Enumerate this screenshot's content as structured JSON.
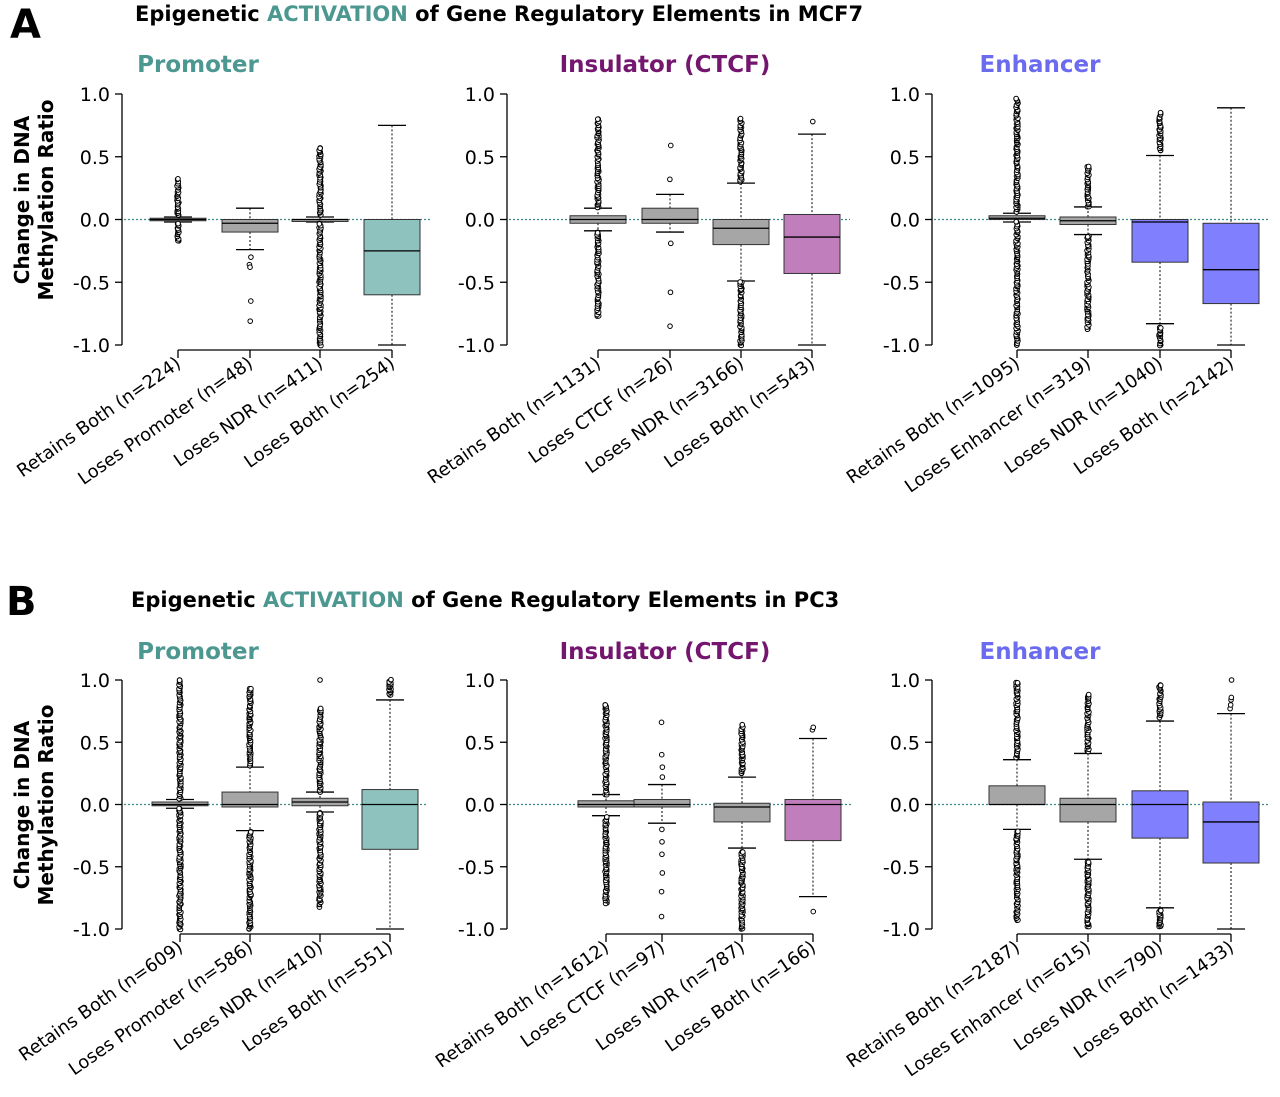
{
  "colors": {
    "activation": "#4d9791",
    "promoter": "#4d9791",
    "insulator": "#74166f",
    "enhancer": "#6b6bf0",
    "box_grey": "#a6a6a6",
    "promoter_fill": "#8dc2bf",
    "insulator_fill": "#c07fbc",
    "enhancer_fill": "#8080ff",
    "zero_line": "#3a8a86"
  },
  "panels": [
    {
      "label": "A",
      "title": {
        "pre": "Epigenetic ",
        "highlight": "ACTIVATION",
        "post": " of Gene Regulatory Elements in MCF7"
      }
    },
    {
      "label": "B",
      "title": {
        "pre": "Epigenetic ",
        "highlight": "ACTIVATION",
        "post": " of Gene Regulatory Elements in PC3"
      }
    }
  ],
  "ylabel_line1": "Change in DNA",
  "ylabel_line2": "Methylation Ratio",
  "chart_data": [
    {
      "type": "box",
      "panel": "A",
      "title": "Promoter",
      "color_key": "promoter",
      "ylim": [
        -1.0,
        1.0
      ],
      "yticks": [
        "1.0",
        "0.5",
        "0.0",
        "-0.5",
        "-1.0"
      ],
      "ylabel": "Change in DNA Methylation Ratio",
      "categories": [
        "Retains Both (n=224)",
        "Loses Promoter (n=48)",
        "Loses NDR (n=411)",
        "Loses Both (n=254)"
      ],
      "boxes": [
        {
          "q1": -0.01,
          "median": 0.0,
          "q3": 0.01,
          "whisker_low": -0.02,
          "whisker_high": 0.02,
          "fill": "box_grey",
          "outliers_range": [
            [
              -0.17,
              0.32
            ]
          ]
        },
        {
          "q1": -0.1,
          "median": -0.03,
          "q3": 0.0,
          "whisker_low": -0.24,
          "whisker_high": 0.09,
          "fill": "box_grey",
          "outliers": [
            -0.3,
            -0.36,
            -0.38,
            -0.65,
            -0.81
          ]
        },
        {
          "q1": -0.01,
          "median": 0.0,
          "q3": 0.0,
          "whisker_low": -0.02,
          "whisker_high": 0.02,
          "fill": "box_grey",
          "outliers_range": [
            [
              -1.0,
              0.57
            ]
          ]
        },
        {
          "q1": -0.6,
          "median": -0.25,
          "q3": 0.0,
          "whisker_low": -1.0,
          "whisker_high": 0.75,
          "fill": "promoter_fill"
        }
      ]
    },
    {
      "type": "box",
      "panel": "A",
      "title": "Insulator (CTCF)",
      "color_key": "insulator",
      "ylim": [
        -1.0,
        1.0
      ],
      "yticks": [
        "1.0",
        "0.5",
        "0.0",
        "-0.5",
        "-1.0"
      ],
      "categories": [
        "Retains Both (n=1131)",
        "Loses CTCF (n=26)",
        "Loses NDR (n=3166)",
        "Loses Both (n=543)"
      ],
      "boxes": [
        {
          "q1": -0.03,
          "median": 0.0,
          "q3": 0.03,
          "whisker_low": -0.09,
          "whisker_high": 0.09,
          "fill": "box_grey",
          "outliers_range": [
            [
              -0.77,
              0.8
            ]
          ]
        },
        {
          "q1": -0.03,
          "median": 0.0,
          "q3": 0.09,
          "whisker_low": -0.1,
          "whisker_high": 0.2,
          "fill": "box_grey",
          "outliers": [
            0.32,
            0.59,
            -0.19,
            -0.58,
            -0.85
          ]
        },
        {
          "q1": -0.2,
          "median": -0.07,
          "q3": 0.0,
          "whisker_low": -0.49,
          "whisker_high": 0.29,
          "fill": "box_grey",
          "outliers_range": [
            [
              -1.0,
              0.8
            ]
          ]
        },
        {
          "q1": -0.43,
          "median": -0.14,
          "q3": 0.04,
          "whisker_low": -1.0,
          "whisker_high": 0.68,
          "fill": "insulator_fill",
          "outliers": [
            0.78
          ]
        }
      ]
    },
    {
      "type": "box",
      "panel": "A",
      "title": "Enhancer",
      "color_key": "enhancer",
      "ylim": [
        -1.0,
        1.0
      ],
      "yticks": [
        "1.0",
        "0.5",
        "0.0",
        "-0.5",
        "-1.0"
      ],
      "categories": [
        "Retains Both (n=1095)",
        "Loses Enhancer (n=319)",
        "Loses NDR (n=1040)",
        "Loses Both (n=2142)"
      ],
      "boxes": [
        {
          "q1": 0.0,
          "median": 0.01,
          "q3": 0.03,
          "whisker_low": -0.02,
          "whisker_high": 0.05,
          "fill": "box_grey",
          "outliers_range": [
            [
              -1.0,
              0.96
            ]
          ]
        },
        {
          "q1": -0.04,
          "median": -0.01,
          "q3": 0.02,
          "whisker_low": -0.12,
          "whisker_high": 0.1,
          "fill": "box_grey",
          "outliers_range": [
            [
              -0.87,
              0.42
            ]
          ]
        },
        {
          "q1": -0.34,
          "median": -0.02,
          "q3": 0.0,
          "whisker_low": -0.83,
          "whisker_high": 0.51,
          "fill": "enhancer_fill",
          "outliers_range": [
            [
              -1.0,
              -0.86
            ],
            [
              0.55,
              0.85
            ]
          ]
        },
        {
          "q1": -0.67,
          "median": -0.4,
          "q3": -0.03,
          "whisker_low": -1.0,
          "whisker_high": 0.89,
          "fill": "enhancer_fill"
        }
      ]
    },
    {
      "type": "box",
      "panel": "B",
      "title": "Promoter",
      "color_key": "promoter",
      "ylim": [
        -1.0,
        1.0
      ],
      "yticks": [
        "1.0",
        "0.5",
        "0.0",
        "-0.5",
        "-1.0"
      ],
      "ylabel": "Change in DNA Methylation Ratio",
      "categories": [
        "Retains Both (n=609)",
        "Loses Promoter (n=586)",
        "Loses NDR (n=410)",
        "Loses Both (n=551)"
      ],
      "boxes": [
        {
          "q1": -0.01,
          "median": 0.0,
          "q3": 0.02,
          "whisker_low": -0.03,
          "whisker_high": 0.04,
          "fill": "box_grey",
          "outliers_range": [
            [
              -1.0,
              1.0
            ]
          ]
        },
        {
          "q1": -0.02,
          "median": 0.0,
          "q3": 0.1,
          "whisker_low": -0.21,
          "whisker_high": 0.3,
          "fill": "box_grey",
          "outliers_range": [
            [
              -1.0,
              0.93
            ]
          ]
        },
        {
          "q1": -0.01,
          "median": 0.02,
          "q3": 0.05,
          "whisker_low": -0.06,
          "whisker_high": 0.1,
          "fill": "box_grey",
          "outliers_range": [
            [
              -0.82,
              0.77
            ]
          ],
          "outliers": [
            1.0
          ]
        },
        {
          "q1": -0.36,
          "median": 0.0,
          "q3": 0.12,
          "whisker_low": -1.0,
          "whisker_high": 0.84,
          "fill": "promoter_fill",
          "outliers_range": [
            [
              0.88,
              1.0
            ]
          ]
        }
      ]
    },
    {
      "type": "box",
      "panel": "B",
      "title": "Insulator (CTCF)",
      "color_key": "insulator",
      "ylim": [
        -1.0,
        1.0
      ],
      "yticks": [
        "1.0",
        "0.5",
        "0.0",
        "-0.5",
        "-1.0"
      ],
      "categories": [
        "Retains Both (n=1612)",
        "Loses CTCF (n=97)",
        "Loses NDR (n=787)",
        "Loses Both (n=166)"
      ],
      "boxes": [
        {
          "q1": -0.02,
          "median": 0.0,
          "q3": 0.03,
          "whisker_low": -0.09,
          "whisker_high": 0.08,
          "fill": "box_grey",
          "outliers_range": [
            [
              -0.79,
              0.8
            ]
          ]
        },
        {
          "q1": -0.02,
          "median": 0.0,
          "q3": 0.04,
          "whisker_low": -0.15,
          "whisker_high": 0.16,
          "fill": "box_grey",
          "outliers": [
            0.22,
            0.3,
            0.4,
            0.66,
            -0.2,
            -0.3,
            -0.4,
            -0.55,
            -0.7,
            -0.9
          ]
        },
        {
          "q1": -0.14,
          "median": -0.02,
          "q3": 0.01,
          "whisker_low": -0.35,
          "whisker_high": 0.22,
          "fill": "box_grey",
          "outliers_range": [
            [
              -1.0,
              -0.38
            ],
            [
              0.25,
              0.64
            ]
          ]
        },
        {
          "q1": -0.29,
          "median": 0.0,
          "q3": 0.04,
          "whisker_low": -0.74,
          "whisker_high": 0.53,
          "fill": "insulator_fill",
          "outliers": [
            0.6,
            0.62,
            -0.86
          ]
        }
      ]
    },
    {
      "type": "box",
      "panel": "B",
      "title": "Enhancer",
      "color_key": "enhancer",
      "ylim": [
        -1.0,
        1.0
      ],
      "yticks": [
        "1.0",
        "0.5",
        "0.0",
        "-0.5",
        "-1.0"
      ],
      "categories": [
        "Retains Both (n=2187)",
        "Loses Enhancer (n=615)",
        "Loses NDR (n=790)",
        "Loses Both (n=1433)"
      ],
      "boxes": [
        {
          "q1": 0.0,
          "median": 0.0,
          "q3": 0.15,
          "whisker_low": -0.2,
          "whisker_high": 0.36,
          "fill": "box_grey",
          "outliers_range": [
            [
              -0.93,
              -0.22
            ],
            [
              0.38,
              0.98
            ]
          ]
        },
        {
          "q1": -0.14,
          "median": 0.0,
          "q3": 0.05,
          "whisker_low": -0.44,
          "whisker_high": 0.41,
          "fill": "box_grey",
          "outliers_range": [
            [
              -0.98,
              -0.46
            ],
            [
              0.43,
              0.88
            ]
          ]
        },
        {
          "q1": -0.27,
          "median": 0.0,
          "q3": 0.11,
          "whisker_low": -0.83,
          "whisker_high": 0.67,
          "fill": "enhancer_fill",
          "outliers_range": [
            [
              -0.98,
              -0.85
            ],
            [
              0.7,
              0.96
            ]
          ]
        },
        {
          "q1": -0.47,
          "median": -0.14,
          "q3": 0.02,
          "whisker_low": -1.0,
          "whisker_high": 0.73,
          "fill": "enhancer_fill",
          "outliers": [
            0.77,
            0.8,
            0.84,
            0.86,
            1.0
          ]
        }
      ]
    }
  ]
}
